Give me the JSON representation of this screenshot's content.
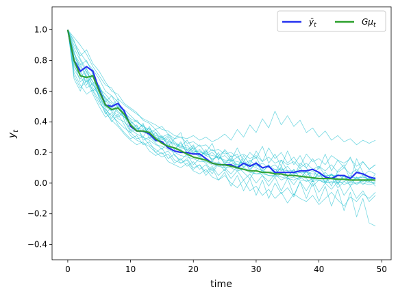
{
  "chart_data": {
    "type": "line",
    "xlabel": "time",
    "ylabel": "y",
    "ylabel_sub": "t",
    "xlim": [
      -2.5,
      51.5
    ],
    "ylim": [
      -0.5,
      1.15
    ],
    "xticks": [
      0,
      10,
      20,
      30,
      40,
      50
    ],
    "xtick_labels": [
      "0",
      "10",
      "20",
      "30",
      "40",
      "50"
    ],
    "yticks": [
      -0.4,
      -0.2,
      0.0,
      0.2,
      0.4,
      0.6,
      0.8,
      1.0
    ],
    "ytick_labels": [
      "−0.4",
      "−0.2",
      "0.0",
      "0.2",
      "0.4",
      "0.6",
      "0.8",
      "1.0"
    ],
    "grid": false,
    "legend_position": "top-right",
    "x": [
      0,
      1,
      2,
      3,
      4,
      5,
      6,
      7,
      8,
      9,
      10,
      11,
      12,
      13,
      14,
      15,
      16,
      17,
      18,
      19,
      20,
      21,
      22,
      23,
      24,
      25,
      26,
      27,
      28,
      29,
      30,
      31,
      32,
      33,
      34,
      35,
      36,
      37,
      38,
      39,
      40,
      41,
      42,
      43,
      44,
      45,
      46,
      47,
      48,
      49
    ],
    "series": [
      {
        "name": "ȳ",
        "name_sub": "t",
        "color": "#2432f0",
        "values": [
          1.0,
          0.8,
          0.73,
          0.76,
          0.73,
          0.61,
          0.51,
          0.5,
          0.52,
          0.47,
          0.37,
          0.34,
          0.34,
          0.32,
          0.28,
          0.27,
          0.23,
          0.21,
          0.2,
          0.2,
          0.19,
          0.19,
          0.16,
          0.13,
          0.12,
          0.12,
          0.12,
          0.1,
          0.13,
          0.11,
          0.13,
          0.1,
          0.11,
          0.07,
          0.07,
          0.07,
          0.07,
          0.08,
          0.08,
          0.09,
          0.07,
          0.04,
          0.03,
          0.05,
          0.05,
          0.03,
          0.07,
          0.06,
          0.04,
          0.03
        ]
      },
      {
        "name": "Gμ",
        "name_sub": "t",
        "color": "#2ca02c",
        "values": [
          1.0,
          0.8,
          0.7,
          0.69,
          0.7,
          0.6,
          0.51,
          0.48,
          0.49,
          0.45,
          0.38,
          0.34,
          0.34,
          0.33,
          0.29,
          0.26,
          0.24,
          0.23,
          0.21,
          0.19,
          0.17,
          0.16,
          0.15,
          0.13,
          0.12,
          0.12,
          0.11,
          0.1,
          0.09,
          0.08,
          0.08,
          0.07,
          0.07,
          0.06,
          0.06,
          0.05,
          0.05,
          0.045,
          0.04,
          0.035,
          0.03,
          0.03,
          0.03,
          0.025,
          0.025,
          0.02,
          0.02,
          0.02,
          0.02,
          0.02
        ]
      }
    ],
    "sample_paths": {
      "color": "#17becf",
      "paths": [
        [
          1.0,
          0.92,
          0.85,
          0.79,
          0.74,
          0.68,
          0.6,
          0.57,
          0.53,
          0.46,
          0.42,
          0.4,
          0.37,
          0.34,
          0.31,
          0.3,
          0.28,
          0.25,
          0.23,
          0.22,
          0.2,
          0.21,
          0.18,
          0.16,
          0.17,
          0.14,
          0.13,
          0.12,
          0.11,
          0.12,
          0.1,
          0.08,
          0.07,
          0.09,
          0.06,
          0.05,
          0.06,
          0.07,
          0.04,
          0.03,
          0.05,
          0.04,
          0.06,
          0.03,
          0.02,
          0.04,
          0.03,
          0.05,
          0.02,
          0.04
        ],
        [
          1.0,
          0.85,
          0.72,
          0.66,
          0.7,
          0.55,
          0.45,
          0.5,
          0.55,
          0.41,
          0.33,
          0.36,
          0.3,
          0.37,
          0.28,
          0.31,
          0.24,
          0.29,
          0.33,
          0.21,
          0.25,
          0.18,
          0.2,
          0.26,
          0.15,
          0.22,
          0.17,
          0.19,
          0.1,
          0.14,
          0.17,
          0.09,
          0.12,
          0.06,
          0.15,
          0.08,
          0.04,
          0.13,
          0.1,
          0.03,
          0.11,
          0.05,
          -0.02,
          0.08,
          0.12,
          0.02,
          0.16,
          0.07,
          0.01,
          0.06
        ],
        [
          1.0,
          0.74,
          0.68,
          0.75,
          0.62,
          0.58,
          0.49,
          0.42,
          0.5,
          0.44,
          0.34,
          0.38,
          0.28,
          0.3,
          0.26,
          0.22,
          0.27,
          0.18,
          0.15,
          0.19,
          0.12,
          0.16,
          0.13,
          0.08,
          0.14,
          0.1,
          0.06,
          0.11,
          0.07,
          0.03,
          0.09,
          0.05,
          0.01,
          0.06,
          0.02,
          0.04,
          -0.01,
          0.05,
          0.03,
          -0.02,
          0.02,
          0.0,
          0.04,
          -0.03,
          0.01,
          0.03,
          -0.01,
          0.02,
          0.0,
          0.01
        ],
        [
          1.0,
          0.88,
          0.8,
          0.72,
          0.66,
          0.63,
          0.55,
          0.52,
          0.47,
          0.43,
          0.41,
          0.36,
          0.35,
          0.32,
          0.3,
          0.27,
          0.24,
          0.23,
          0.22,
          0.18,
          0.2,
          0.17,
          0.15,
          0.14,
          0.13,
          0.11,
          0.12,
          0.09,
          0.1,
          0.08,
          0.06,
          0.07,
          0.05,
          0.04,
          0.06,
          0.03,
          0.02,
          0.04,
          0.01,
          0.03,
          0.02,
          0.01,
          0.0,
          0.02,
          -0.01,
          0.01,
          0.0,
          0.02,
          0.01,
          0.0
        ],
        [
          1.0,
          0.78,
          0.66,
          0.7,
          0.6,
          0.52,
          0.48,
          0.44,
          0.4,
          0.36,
          0.33,
          0.29,
          0.3,
          0.25,
          0.22,
          0.19,
          0.21,
          0.15,
          0.13,
          0.16,
          0.1,
          0.12,
          0.07,
          0.11,
          0.05,
          0.09,
          0.03,
          0.08,
          0.02,
          0.06,
          0.0,
          0.05,
          -0.02,
          0.04,
          -0.05,
          0.03,
          -0.08,
          0.01,
          -0.1,
          0.0,
          -0.12,
          -0.02,
          -0.15,
          -0.04,
          -0.18,
          -0.06,
          -0.22,
          -0.1,
          -0.26,
          -0.28
        ],
        [
          1.0,
          0.95,
          0.9,
          0.84,
          0.76,
          0.7,
          0.64,
          0.62,
          0.55,
          0.51,
          0.48,
          0.45,
          0.42,
          0.4,
          0.38,
          0.35,
          0.34,
          0.31,
          0.3,
          0.29,
          0.31,
          0.28,
          0.3,
          0.27,
          0.29,
          0.32,
          0.28,
          0.35,
          0.3,
          0.38,
          0.33,
          0.42,
          0.36,
          0.47,
          0.38,
          0.44,
          0.37,
          0.41,
          0.33,
          0.36,
          0.3,
          0.34,
          0.28,
          0.31,
          0.27,
          0.29,
          0.25,
          0.28,
          0.26,
          0.28
        ],
        [
          1.0,
          0.82,
          0.77,
          0.8,
          0.71,
          0.6,
          0.53,
          0.57,
          0.49,
          0.43,
          0.39,
          0.35,
          0.38,
          0.31,
          0.27,
          0.3,
          0.25,
          0.22,
          0.26,
          0.2,
          0.23,
          0.17,
          0.21,
          0.15,
          0.18,
          0.13,
          0.16,
          0.12,
          0.14,
          0.09,
          0.13,
          0.08,
          0.11,
          0.06,
          0.1,
          0.04,
          0.09,
          0.03,
          0.08,
          0.01,
          0.07,
          0.0,
          0.06,
          -0.01,
          0.05,
          -0.02,
          0.04,
          0.01,
          0.03,
          0.02
        ],
        [
          1.0,
          0.7,
          0.62,
          0.67,
          0.58,
          0.5,
          0.43,
          0.46,
          0.38,
          0.33,
          0.29,
          0.31,
          0.25,
          0.27,
          0.2,
          0.23,
          0.16,
          0.19,
          0.13,
          0.15,
          0.09,
          0.12,
          0.05,
          0.1,
          0.02,
          0.07,
          -0.02,
          0.05,
          -0.05,
          0.03,
          -0.08,
          0.02,
          -0.1,
          0.0,
          -0.07,
          -0.03,
          -0.09,
          0.01,
          -0.05,
          0.02,
          -0.06,
          0.0,
          -0.04,
          0.01,
          -0.08,
          -0.02,
          -0.1,
          -0.05,
          -0.12,
          -0.08
        ],
        [
          1.0,
          0.9,
          0.83,
          0.87,
          0.78,
          0.73,
          0.66,
          0.6,
          0.58,
          0.52,
          0.49,
          0.46,
          0.41,
          0.39,
          0.35,
          0.37,
          0.32,
          0.29,
          0.3,
          0.26,
          0.27,
          0.24,
          0.25,
          0.21,
          0.22,
          0.19,
          0.2,
          0.17,
          0.19,
          0.16,
          0.18,
          0.14,
          0.17,
          0.13,
          0.15,
          0.12,
          0.14,
          0.1,
          0.13,
          0.09,
          0.11,
          0.08,
          0.12,
          0.07,
          0.1,
          0.06,
          0.09,
          0.05,
          0.08,
          0.06
        ],
        [
          1.0,
          0.76,
          0.7,
          0.62,
          0.65,
          0.56,
          0.5,
          0.47,
          0.42,
          0.4,
          0.35,
          0.32,
          0.3,
          0.28,
          0.25,
          0.24,
          0.22,
          0.2,
          0.18,
          0.17,
          0.16,
          0.14,
          0.14,
          0.12,
          0.11,
          0.1,
          0.1,
          0.08,
          0.09,
          0.07,
          0.06,
          0.06,
          0.05,
          0.05,
          0.04,
          0.03,
          0.04,
          0.02,
          0.02,
          0.01,
          0.02,
          0.0,
          0.01,
          0.0,
          0.01,
          -0.01,
          0.0,
          0.0,
          -0.01,
          0.0
        ],
        [
          1.0,
          0.86,
          0.74,
          0.64,
          0.72,
          0.63,
          0.52,
          0.47,
          0.51,
          0.45,
          0.37,
          0.34,
          0.39,
          0.29,
          0.33,
          0.26,
          0.3,
          0.22,
          0.27,
          0.19,
          0.24,
          0.17,
          0.22,
          0.14,
          0.2,
          0.12,
          0.18,
          0.1,
          0.16,
          0.08,
          0.14,
          0.07,
          0.12,
          0.05,
          0.11,
          0.04,
          0.09,
          0.03,
          0.08,
          0.02,
          0.07,
          0.01,
          0.06,
          0.0,
          0.05,
          0.0,
          0.04,
          -0.01,
          0.03,
          -0.02
        ],
        [
          1.0,
          0.8,
          0.76,
          0.7,
          0.64,
          0.59,
          0.56,
          0.5,
          0.46,
          0.43,
          0.39,
          0.41,
          0.36,
          0.33,
          0.35,
          0.3,
          0.32,
          0.27,
          0.24,
          0.28,
          0.22,
          0.25,
          0.19,
          0.22,
          0.18,
          0.21,
          0.15,
          0.23,
          0.14,
          0.2,
          0.16,
          0.24,
          0.13,
          0.19,
          0.11,
          0.21,
          0.12,
          0.18,
          0.1,
          0.16,
          0.09,
          0.19,
          0.08,
          0.15,
          0.1,
          0.17,
          0.07,
          0.14,
          0.09,
          0.12
        ],
        [
          1.0,
          0.72,
          0.64,
          0.58,
          0.61,
          0.54,
          0.46,
          0.41,
          0.37,
          0.32,
          0.28,
          0.25,
          0.27,
          0.21,
          0.18,
          0.2,
          0.14,
          0.12,
          0.1,
          0.13,
          0.08,
          0.06,
          0.09,
          0.04,
          0.02,
          0.05,
          0.0,
          -0.03,
          0.02,
          -0.05,
          -0.02,
          -0.08,
          -0.04,
          -0.1,
          -0.06,
          -0.13,
          -0.07,
          -0.1,
          -0.12,
          -0.08,
          -0.14,
          -0.1,
          -0.06,
          -0.11,
          -0.15,
          -0.09,
          -0.12,
          -0.07,
          -0.1,
          -0.06
        ],
        [
          1.0,
          0.93,
          0.81,
          0.74,
          0.69,
          0.62,
          0.58,
          0.53,
          0.5,
          0.48,
          0.44,
          0.4,
          0.37,
          0.35,
          0.33,
          0.29,
          0.27,
          0.26,
          0.24,
          0.23,
          0.21,
          0.2,
          0.19,
          0.18,
          0.17,
          0.15,
          0.15,
          0.14,
          0.13,
          0.12,
          0.12,
          0.1,
          0.11,
          0.09,
          0.09,
          0.08,
          0.08,
          0.07,
          0.07,
          0.06,
          0.06,
          0.05,
          0.05,
          0.05,
          0.04,
          0.04,
          0.03,
          0.04,
          0.03,
          0.03
        ],
        [
          1.0,
          0.68,
          0.6,
          0.73,
          0.66,
          0.57,
          0.47,
          0.4,
          0.45,
          0.38,
          0.31,
          0.28,
          0.26,
          0.24,
          0.2,
          0.17,
          0.19,
          0.13,
          0.16,
          0.11,
          0.14,
          0.09,
          0.12,
          0.06,
          0.13,
          0.08,
          0.15,
          0.1,
          0.18,
          0.12,
          0.21,
          0.14,
          0.23,
          0.16,
          0.2,
          0.13,
          0.17,
          0.11,
          0.19,
          0.14,
          0.16,
          0.12,
          0.18,
          0.15,
          0.13,
          0.16,
          0.11,
          0.14,
          0.09,
          0.12
        ],
        [
          1.0,
          0.84,
          0.78,
          0.68,
          0.6,
          0.64,
          0.54,
          0.49,
          0.43,
          0.47,
          0.4,
          0.37,
          0.33,
          0.36,
          0.3,
          0.28,
          0.31,
          0.26,
          0.23,
          0.25,
          0.2,
          0.22,
          0.18,
          0.2,
          0.16,
          0.18,
          0.14,
          0.17,
          0.12,
          0.15,
          0.11,
          0.13,
          0.1,
          0.12,
          0.08,
          0.11,
          0.06,
          0.1,
          0.05,
          0.08,
          0.04,
          0.07,
          0.03,
          0.06,
          0.02,
          0.05,
          0.03,
          0.04,
          0.02,
          0.03
        ]
      ]
    }
  }
}
